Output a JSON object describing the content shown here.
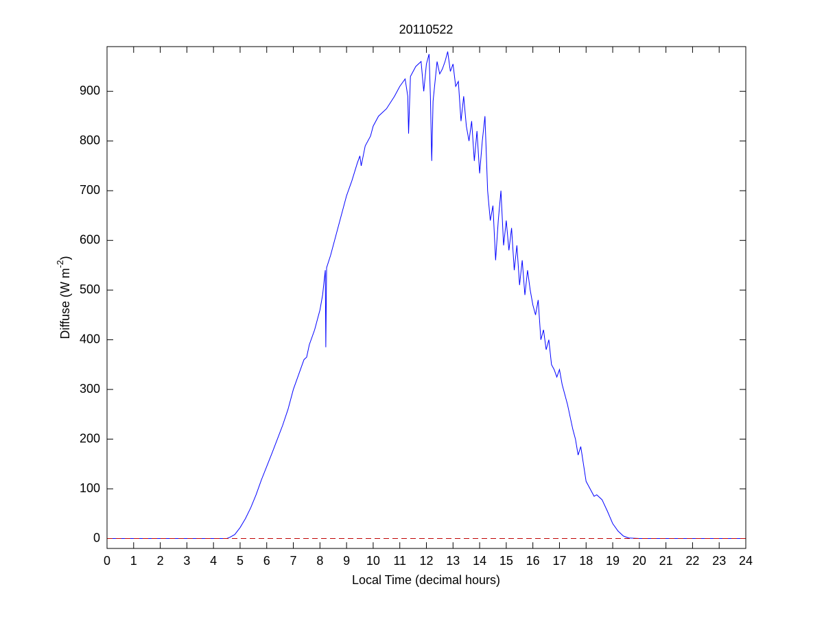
{
  "chart_data": {
    "type": "line",
    "title": "20110522",
    "xlabel": "Local Time (decimal hours)",
    "ylabel": "Diffuse (W m",
    "ylabel_superscript": "-2",
    "ylabel_end": ")",
    "x": [
      0,
      1,
      2,
      3,
      4,
      4.5,
      4.6,
      4.8,
      5.0,
      5.2,
      5.4,
      5.6,
      5.8,
      6.0,
      6.2,
      6.4,
      6.6,
      6.8,
      7.0,
      7.2,
      7.4,
      7.5,
      7.6,
      7.8,
      8.0,
      8.1,
      8.2,
      8.22,
      8.25,
      8.4,
      8.6,
      8.8,
      9.0,
      9.2,
      9.4,
      9.5,
      9.55,
      9.7,
      9.9,
      10.0,
      10.2,
      10.5,
      10.8,
      11.0,
      11.2,
      11.3,
      11.33,
      11.4,
      11.6,
      11.8,
      11.9,
      12.0,
      12.1,
      12.15,
      12.2,
      12.25,
      12.4,
      12.5,
      12.6,
      12.7,
      12.8,
      12.9,
      13.0,
      13.1,
      13.2,
      13.3,
      13.4,
      13.5,
      13.6,
      13.7,
      13.8,
      13.9,
      14.0,
      14.1,
      14.2,
      14.3,
      14.4,
      14.5,
      14.6,
      14.7,
      14.8,
      14.9,
      15.0,
      15.1,
      15.2,
      15.3,
      15.4,
      15.5,
      15.6,
      15.7,
      15.8,
      15.9,
      16.0,
      16.1,
      16.2,
      16.3,
      16.4,
      16.5,
      16.6,
      16.7,
      16.8,
      16.9,
      17.0,
      17.1,
      17.3,
      17.5,
      17.6,
      17.7,
      17.8,
      17.9,
      18.0,
      18.1,
      18.3,
      18.4,
      18.6,
      18.8,
      19.0,
      19.2,
      19.4,
      19.6,
      20.0,
      21,
      22,
      23,
      24
    ],
    "series": [
      {
        "color": "#0000ff",
        "values": [
          0,
          0,
          0,
          0,
          0,
          0,
          2,
          8,
          22,
          40,
          62,
          88,
          118,
          145,
          172,
          200,
          228,
          260,
          300,
          330,
          360,
          365,
          390,
          420,
          460,
          490,
          540,
          385,
          545,
          570,
          610,
          650,
          690,
          720,
          755,
          770,
          750,
          790,
          810,
          830,
          850,
          865,
          890,
          910,
          925,
          890,
          815,
          930,
          950,
          960,
          900,
          955,
          975,
          890,
          760,
          880,
          960,
          935,
          945,
          960,
          980,
          940,
          955,
          910,
          920,
          840,
          890,
          830,
          800,
          840,
          760,
          820,
          735,
          800,
          850,
          700,
          640,
          670,
          560,
          640,
          700,
          590,
          640,
          580,
          625,
          540,
          590,
          510,
          560,
          490,
          540,
          500,
          470,
          450,
          480,
          400,
          420,
          380,
          400,
          350,
          340,
          325,
          340,
          310,
          270,
          220,
          200,
          168,
          185,
          150,
          115,
          105,
          85,
          88,
          78,
          55,
          30,
          15,
          5,
          1,
          0,
          0,
          0,
          0,
          0
        ]
      }
    ],
    "reference_line": {
      "value": 0,
      "color": "#c00000",
      "dashed": true
    },
    "xlim": [
      0,
      24
    ],
    "ylim": [
      -20,
      990
    ],
    "xticks": [
      0,
      1,
      2,
      3,
      4,
      5,
      6,
      7,
      8,
      9,
      10,
      11,
      12,
      13,
      14,
      15,
      16,
      17,
      18,
      19,
      20,
      21,
      22,
      23,
      24
    ],
    "yticks": [
      0,
      100,
      200,
      300,
      400,
      500,
      600,
      700,
      800,
      900
    ],
    "grid": false,
    "box": true
  }
}
